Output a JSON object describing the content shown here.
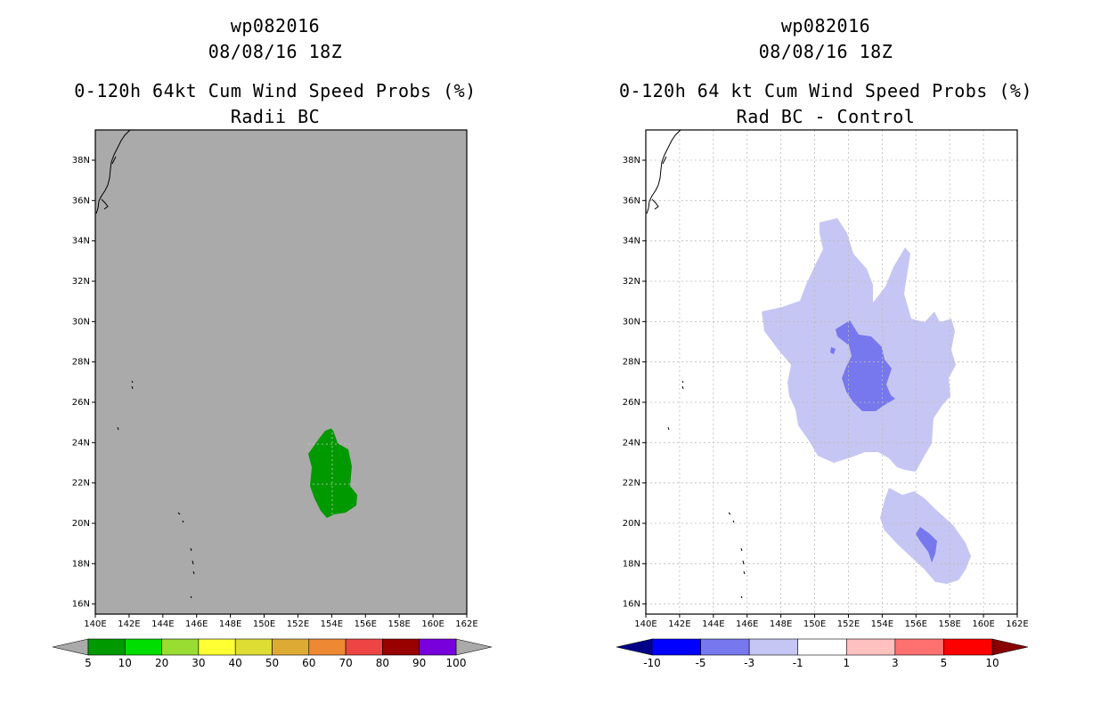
{
  "left_panel": {
    "title_lines": [
      "wp082016",
      "08/08/16 18Z",
      "0-120h 64kt Cum Wind Speed Probs (%)",
      "Radii BC"
    ],
    "colorbar": {
      "colors": [
        "#009900",
        "#00dd00",
        "#99dd33",
        "#ffff33",
        "#dddd33",
        "#ddaa33",
        "#ee8833",
        "#ee4444",
        "#990000",
        "#7700dd"
      ],
      "labels": [
        "5",
        "10",
        "20",
        "30",
        "40",
        "50",
        "60",
        "70",
        "80",
        "90",
        "100"
      ],
      "end_color": "#aaaaaa"
    },
    "background": "#aaaaaa"
  },
  "right_panel": {
    "title_lines": [
      "wp082016",
      "08/08/16 18Z",
      "0-120h 64 kt Cum Wind Speed Probs (%)",
      "Rad BC - Control"
    ],
    "colorbar": {
      "colors": [
        "#0000ff",
        "#7777ee",
        "#c6c6f4",
        "#ffffff",
        "#ffc0c0",
        "#ff7070",
        "#ff0000"
      ],
      "labels": [
        "-10",
        "-5",
        "-3",
        "-1",
        "1",
        "3",
        "5",
        "10"
      ],
      "low_end_color": "#000088",
      "high_end_color": "#880000"
    },
    "background": "#ffffff"
  },
  "map_axes": {
    "lon_labels": [
      "140E",
      "142E",
      "144E",
      "146E",
      "148E",
      "150E",
      "152E",
      "154E",
      "156E",
      "158E",
      "160E",
      "162E"
    ],
    "lat_labels": [
      "16N",
      "18N",
      "20N",
      "22N",
      "24N",
      "26N",
      "28N",
      "30N",
      "32N",
      "34N",
      "36N",
      "38N"
    ],
    "lon_range": [
      140,
      162
    ],
    "lat_range": [
      15.5,
      39.5
    ]
  },
  "colors": {
    "prob_fill": "#009900",
    "diff_light": "#c6c6f4",
    "diff_dark": "#7777ee",
    "grid": "#bbbbbb",
    "coast": "#000000"
  }
}
